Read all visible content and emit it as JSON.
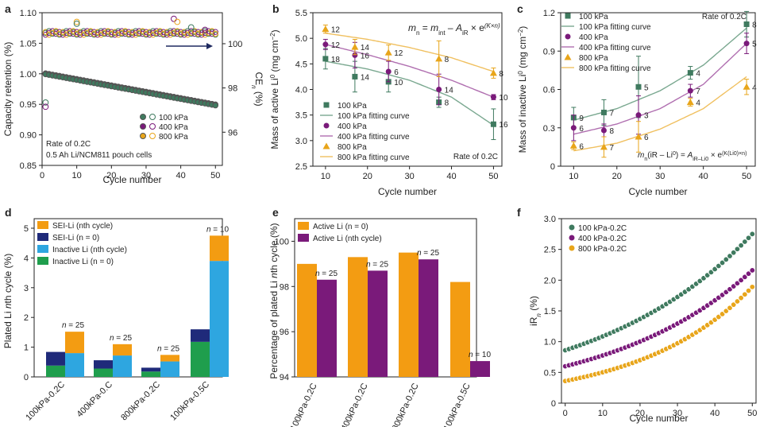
{
  "colors": {
    "green": "#3f7a5f",
    "purple": "#7a1a7a",
    "yellow": "#e8a51a",
    "green_fit": "#7aa890",
    "purple_fit": "#b06fb0",
    "yellow_fit": "#f0c060",
    "orange": "#f39c12",
    "navy": "#1f2a7a",
    "sky": "#2ea6e0",
    "emerald": "#1f9e4d",
    "arrow": "#1f2a60"
  },
  "chart_data": [
    {
      "panel": "a",
      "type": "scatter",
      "xlabel": "Cycle number",
      "ylabel": "Capacity retention (%)",
      "y2label": "CE",
      "y2label_sub": "n",
      "y2label_unit": "(%)",
      "xlim": [
        0,
        52
      ],
      "ylim": [
        0.85,
        1.1
      ],
      "y2lim": [
        94.5,
        101.4
      ],
      "xticks": [
        "0",
        "10",
        "20",
        "30",
        "40",
        "50"
      ],
      "yticks": [
        "0.85",
        "0.90",
        "0.95",
        "1.00",
        "1.05",
        "1.10"
      ],
      "y2ticks": [
        "96",
        "98",
        "100"
      ],
      "legend": [
        "100 kPa",
        "400 kPa",
        "800 kPa"
      ],
      "notes": [
        "Rate of 0.2C",
        "0.5 Ah Li/NCM811 pouch cells"
      ],
      "capacity": {
        "start": 1.0,
        "end": 0.949
      },
      "ce_outliers": [
        [
          1,
          0.953
        ],
        [
          1,
          0.946
        ],
        [
          10,
          1.085
        ],
        [
          10,
          1.082
        ],
        [
          38,
          1.09
        ],
        [
          39,
          1.085
        ],
        [
          43,
          1.076
        ],
        [
          47,
          1.072
        ]
      ]
    },
    {
      "panel": "b",
      "type": "scatter",
      "xlabel": "Cycle number",
      "ylabel": "Mass of active Li",
      "ylabel_sup": "0",
      "ylabel_unit": "(mg cm",
      "xlim": [
        7,
        52
      ],
      "ylim": [
        2.5,
        5.5
      ],
      "xticks": [
        "10",
        "20",
        "30",
        "40",
        "50"
      ],
      "yticks": [
        "2.5",
        "3.0",
        "3.5",
        "4.0",
        "4.5",
        "5.0",
        "5.5"
      ],
      "equation": "m = m − A × e",
      "note": "Rate of 0.2C",
      "legend": [
        "100 kPa",
        "100 kPa fitting curve",
        "400 kPa",
        "400 kPa fitting curve",
        "800 kPa",
        "800 kPa fitting curve"
      ],
      "series": [
        {
          "name": "100 kPa",
          "x": [
            10,
            17,
            25,
            37,
            50
          ],
          "y": [
            4.6,
            4.25,
            4.15,
            3.75,
            3.32
          ],
          "err": [
            0.2,
            0.3,
            0.2,
            0.1,
            0.3
          ],
          "labels": [
            "18",
            "14",
            "10",
            "8",
            "16"
          ]
        },
        {
          "name": "400 kPa",
          "x": [
            10,
            17,
            25,
            37,
            50
          ],
          "y": [
            4.88,
            4.67,
            4.35,
            4.0,
            3.85
          ],
          "err": [
            0.1,
            0.25,
            0.2,
            0.3,
            0.05
          ],
          "labels": [
            "12",
            "16",
            "6",
            "14",
            "10"
          ]
        },
        {
          "name": "800 kPa",
          "x": [
            10,
            17,
            25,
            37,
            50
          ],
          "y": [
            5.18,
            4.83,
            4.72,
            4.6,
            4.32
          ],
          "err": [
            0.08,
            0.15,
            0.15,
            0.35,
            0.1
          ],
          "labels": [
            "12",
            "14",
            "12",
            "8",
            "8"
          ]
        }
      ],
      "fits": [
        {
          "name": "100 kPa fitting curve",
          "x": [
            10,
            20,
            30,
            40,
            50
          ],
          "y": [
            4.55,
            4.4,
            4.18,
            3.85,
            3.3
          ]
        },
        {
          "name": "400 kPa fitting curve",
          "x": [
            10,
            20,
            30,
            40,
            50
          ],
          "y": [
            4.88,
            4.68,
            4.45,
            4.18,
            3.85
          ]
        },
        {
          "name": "800 kPa fitting curve",
          "x": [
            10,
            20,
            30,
            40,
            50
          ],
          "y": [
            5.1,
            4.98,
            4.82,
            4.62,
            4.35
          ]
        }
      ]
    },
    {
      "panel": "c",
      "type": "scatter",
      "xlabel": "Cycle number",
      "ylabel": "Mass of inactive Li",
      "ylabel_sup": "0",
      "ylabel_unit": "(mg cm",
      "xlim": [
        7,
        52
      ],
      "ylim": [
        0,
        1.2
      ],
      "xticks": [
        "10",
        "20",
        "30",
        "40",
        "50"
      ],
      "yticks": [
        "0",
        "0.3",
        "0.6",
        "0.9",
        "1.2"
      ],
      "equation": "m (iR − Li ) = A × e",
      "note": "Rate of 0.2C",
      "legend": [
        "100 kPa",
        "100 kPa fitting curve",
        "400 kPa",
        "400 kPa fitting curve",
        "800 kPa",
        "800 kPa fitting curve"
      ],
      "series": [
        {
          "name": "100 kPa",
          "x": [
            10,
            17,
            25,
            37,
            50
          ],
          "y": [
            0.38,
            0.42,
            0.62,
            0.73,
            1.11
          ],
          "err": [
            0.08,
            0.1,
            0.24,
            0.05,
            0.1
          ],
          "labels": [
            "9",
            "7",
            "5",
            "4",
            "8"
          ]
        },
        {
          "name": "400 kPa",
          "x": [
            10,
            17,
            25,
            37,
            50
          ],
          "y": [
            0.3,
            0.28,
            0.4,
            0.59,
            0.96
          ],
          "err": [
            0.1,
            0.05,
            0.15,
            0.05,
            0.08
          ],
          "labels": [
            "6",
            "8",
            "3",
            "7",
            "5"
          ]
        },
        {
          "name": "800 kPa",
          "x": [
            10,
            17,
            25,
            37,
            50
          ],
          "y": [
            0.16,
            0.15,
            0.23,
            0.5,
            0.62
          ],
          "err": [
            0.03,
            0.08,
            0.12,
            0.03,
            0.06
          ],
          "labels": [
            "6",
            "7",
            "6",
            "4",
            "4"
          ]
        }
      ],
      "fits": [
        {
          "name": "100 kPa fitting curve",
          "x": [
            10,
            20,
            30,
            40,
            50
          ],
          "y": [
            0.36,
            0.45,
            0.59,
            0.79,
            1.08
          ]
        },
        {
          "name": "400 kPa fitting curve",
          "x": [
            10,
            20,
            30,
            40,
            50
          ],
          "y": [
            0.25,
            0.33,
            0.45,
            0.64,
            0.96
          ]
        },
        {
          "name": "800 kPa fitting curve",
          "x": [
            10,
            20,
            30,
            40,
            50
          ],
          "y": [
            0.12,
            0.18,
            0.29,
            0.45,
            0.7
          ]
        }
      ]
    },
    {
      "panel": "d",
      "type": "bar",
      "ylabel": "Plated Li",
      "ylabel_n": "n",
      "ylabel_end": "th cycle (%)",
      "ylim": [
        0,
        5
      ],
      "yticks": [
        "0",
        "1",
        "2",
        "3",
        "4",
        "5"
      ],
      "categories": [
        "100kPa-0.2C",
        "400kPa-0.C",
        "800kPa-0.2C",
        "100kPa-0.5C"
      ],
      "legend": [
        "SEI-Li (nth cycle)",
        "SEI-Li (n = 0)",
        "Inactive Li (nth cycle)",
        "Inactive Li (n = 0)"
      ],
      "bar_labels": [
        "n = 25",
        "n = 25",
        "n = 25",
        "n = 10"
      ],
      "series": [
        {
          "name": "Inactive Li0 (n = 0)",
          "values": [
            0.38,
            0.28,
            0.18,
            1.18
          ]
        },
        {
          "name": "SEI-Li+ (n = 0)",
          "values": [
            0.46,
            0.28,
            0.13,
            0.42
          ]
        },
        {
          "name": "Inactive Li0 (nth cycle)",
          "values": [
            0.8,
            0.72,
            0.52,
            3.9
          ]
        },
        {
          "name": "SEI-Li+ (nth cycle)",
          "values": [
            0.72,
            0.38,
            0.22,
            0.85
          ]
        }
      ]
    },
    {
      "panel": "e",
      "type": "bar",
      "ylabel": "Percentage of plated Li",
      "ylabel_n": "n",
      "ylabel_end": "th cycle (%)",
      "ylim": [
        94,
        101
      ],
      "yticks": [
        "94",
        "96",
        "98",
        "100"
      ],
      "categories": [
        "100kPa-0.2C",
        "400kPa-0.2C",
        "800kPa-0.2C",
        "100kPa-0.5C"
      ],
      "legend": [
        "Active Li (n = 0)",
        "Active Li (nth cycle)"
      ],
      "bar_labels": [
        "n = 25",
        "n = 25",
        "n = 25",
        "n = 10"
      ],
      "series": [
        {
          "name": "Active Li0 (n = 0)",
          "values": [
            99.0,
            99.3,
            99.5,
            98.2
          ]
        },
        {
          "name": "Active Li0 (nth cycle)",
          "values": [
            98.3,
            98.7,
            99.2,
            94.7
          ]
        }
      ]
    },
    {
      "panel": "f",
      "type": "scatter",
      "xlabel": "Cycle number",
      "ylabel": "iR",
      "ylabel_sub": "n",
      "ylabel_unit": "(%)",
      "xlim": [
        -1,
        51
      ],
      "ylim": [
        0,
        3.0
      ],
      "xticks": [
        "0",
        "10",
        "20",
        "30",
        "40",
        "50"
      ],
      "yticks": [
        "0",
        "0.5",
        "1.0",
        "1.5",
        "2.0",
        "2.5",
        "3.0"
      ],
      "legend": [
        "100 kPa-0.2C",
        "400 kPa-0.2C",
        "800 kPa-0.2C"
      ],
      "series": [
        {
          "name": "100 kPa-0.2C",
          "start": 0.86,
          "end": 2.75
        },
        {
          "name": "400 kPa-0.2C",
          "start": 0.6,
          "end": 2.16
        },
        {
          "name": "800 kPa-0.2C",
          "start": 0.36,
          "end": 1.89
        }
      ]
    }
  ],
  "panels": [
    "a",
    "b",
    "c",
    "d",
    "e",
    "f"
  ]
}
